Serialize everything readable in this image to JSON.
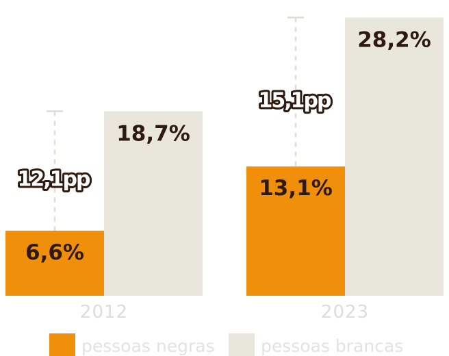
{
  "chart_data": {
    "type": "bar",
    "categories": [
      "2012",
      "2023"
    ],
    "series": [
      {
        "name": "pessoas negras",
        "values": [
          6.6,
          13.1
        ],
        "labels": [
          "6,6%",
          "13,1%"
        ],
        "color": "#f0900a"
      },
      {
        "name": "pessoas brancas",
        "values": [
          18.7,
          28.2
        ],
        "labels": [
          "18,7%",
          "28,2%"
        ],
        "color": "#e9e6dc"
      }
    ],
    "gaps": [
      "12,1pp",
      "15,1pp"
    ],
    "ylim": [
      0,
      30
    ]
  },
  "colors": {
    "gap_line": "#e0ddd5",
    "label_text": "#2e1a0e"
  }
}
